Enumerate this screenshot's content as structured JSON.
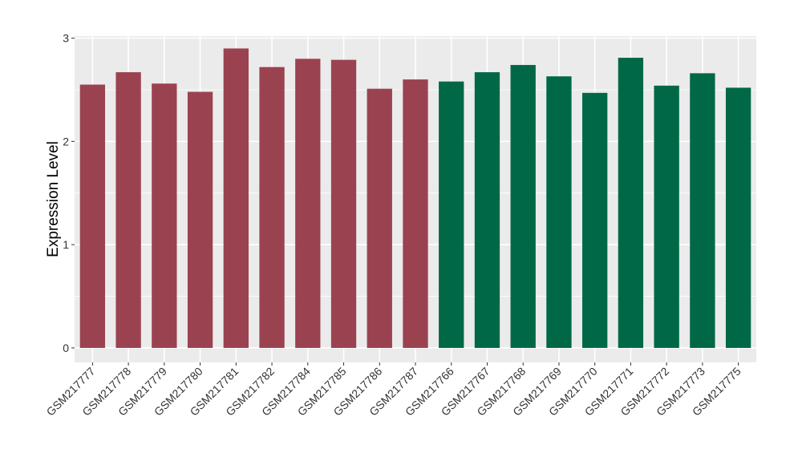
{
  "chart_data": {
    "type": "bar",
    "title": "",
    "xlabel": "",
    "ylabel": "Expression Level",
    "ylim": [
      -0.14,
      3.02
    ],
    "yticks": [
      0,
      1,
      2,
      3
    ],
    "ytick_labels": [
      "0",
      "1",
      "2",
      "3"
    ],
    "grid": true,
    "legend": "none",
    "categories": [
      "GSM217777",
      "GSM217778",
      "GSM217779",
      "GSM217780",
      "GSM217781",
      "GSM217782",
      "GSM217784",
      "GSM217785",
      "GSM217786",
      "GSM217787",
      "GSM217766",
      "GSM217767",
      "GSM217768",
      "GSM217769",
      "GSM217770",
      "GSM217771",
      "GSM217772",
      "GSM217773",
      "GSM217775"
    ],
    "values": [
      2.55,
      2.67,
      2.56,
      2.48,
      2.9,
      2.72,
      2.8,
      2.79,
      2.51,
      2.6,
      2.58,
      2.67,
      2.74,
      2.63,
      2.47,
      2.81,
      2.54,
      2.66,
      2.52
    ],
    "bar_colors": [
      "#9b4250",
      "#9b4250",
      "#9b4250",
      "#9b4250",
      "#9b4250",
      "#9b4250",
      "#9b4250",
      "#9b4250",
      "#9b4250",
      "#9b4250",
      "#006846",
      "#006846",
      "#006846",
      "#006846",
      "#006846",
      "#006846",
      "#006846",
      "#006846",
      "#006846"
    ],
    "panel_background": "#ebebeb",
    "grid_color": "#ffffff"
  }
}
